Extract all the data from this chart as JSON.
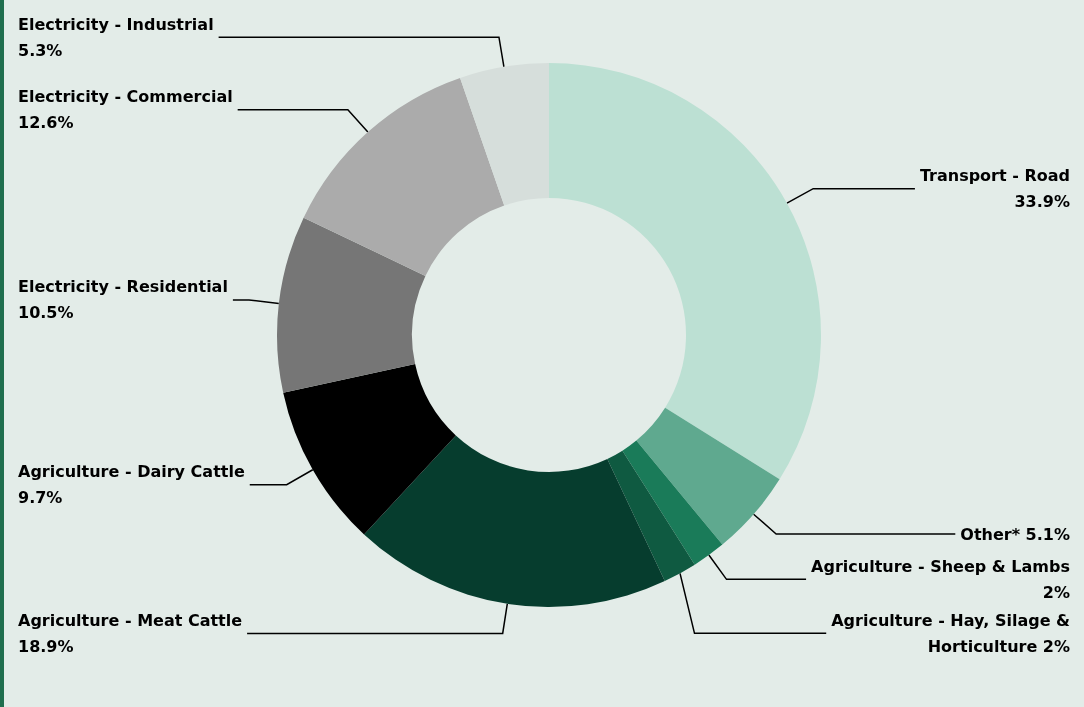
{
  "chart_data": {
    "type": "donut",
    "categories": [
      "Transport - Road",
      "Other*",
      "Agriculture - Sheep & Lambs",
      "Agriculture - Hay, Silage & Horticulture",
      "Agriculture - Meat Cattle",
      "Agriculture - Dairy Cattle",
      "Electricity - Residential",
      "Electricity - Commercial",
      "Electricity - Industrial"
    ],
    "values": [
      33.9,
      5.1,
      2,
      2,
      18.9,
      9.7,
      10.5,
      12.6,
      5.3
    ],
    "colors": [
      "#bce0d3",
      "#5fa98f",
      "#1a7b59",
      "#0f5a41",
      "#063d2e",
      "#000000",
      "#767676",
      "#ababab",
      "#d6dedb"
    ],
    "value_labels": [
      "33.9%",
      "5.1%",
      "2%",
      "2%",
      "18.9%",
      "9.7%",
      "10.5%",
      "12.6%",
      "5.3%"
    ],
    "legend": false
  }
}
